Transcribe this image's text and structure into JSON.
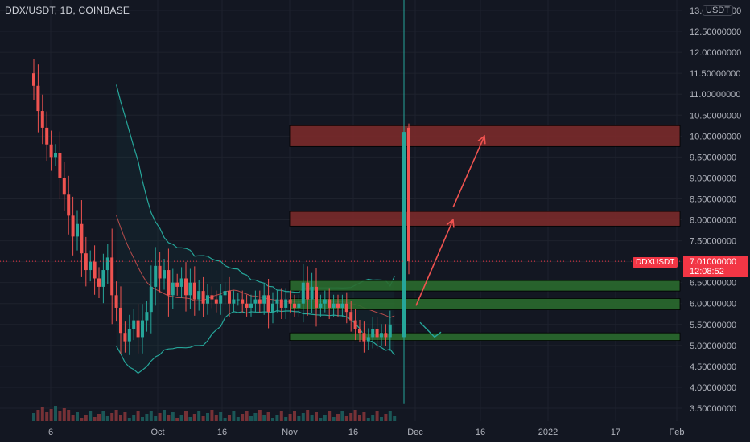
{
  "header": {
    "title": "DDX/USDT, 1D, COINBASE"
  },
  "price_axis": {
    "unit_badge": "USDT",
    "ticks": [
      "13.00000000",
      "12.50000000",
      "12.00000000",
      "11.50000000",
      "11.00000000",
      "10.50000000",
      "10.00000000",
      "9.50000000",
      "9.00000000",
      "8.50000000",
      "8.00000000",
      "7.50000000",
      "7.00000000",
      "6.50000000",
      "6.00000000",
      "5.50000000",
      "5.00000000",
      "4.50000000",
      "4.00000000",
      "3.50000000"
    ],
    "last_price": "7.01000000",
    "countdown": "12:08:52",
    "symbol_label": "DDXUSDT"
  },
  "time_axis": {
    "ticks": [
      "6",
      "Oct",
      "16",
      "Nov",
      "16",
      "Dec",
      "16",
      "2022",
      "17",
      "Feb"
    ]
  },
  "colors": {
    "up": "#26a69a",
    "down": "#ef5350",
    "band": "#26a69a",
    "zone_resist": "#7a2a2a",
    "zone_support": "#2a6a2e",
    "arrow": "#f05350",
    "arrow2": "#26a69a"
  },
  "chart_data": {
    "type": "candlestick",
    "title": "DDX/USDT, 1D, COINBASE",
    "xlabel": "",
    "ylabel": "",
    "ylim": [
      3.3,
      13.0
    ],
    "x_ticks": [
      "6",
      "Oct",
      "16",
      "Nov",
      "16",
      "Dec",
      "16",
      "2022",
      "17",
      "Feb"
    ],
    "close_series": [
      11.2,
      10.6,
      10.2,
      9.8,
      9.5,
      9.6,
      9.0,
      8.6,
      8.1,
      7.6,
      7.9,
      7.2,
      6.8,
      7.0,
      6.6,
      6.4,
      6.8,
      7.1,
      6.2,
      5.9,
      5.3,
      5.1,
      5.4,
      5.6,
      5.2,
      5.6,
      5.8,
      6.4,
      6.9,
      6.6,
      6.8,
      6.2,
      6.5,
      6.4,
      6.6,
      6.2,
      6.5,
      6.1,
      6.3,
      6.0,
      6.2,
      6.1,
      6.0,
      6.2,
      6.3,
      6.0,
      6.1,
      6.1,
      6.0,
      5.9,
      6.0,
      6.1,
      6.0,
      6.2,
      5.8,
      6.0,
      6.1,
      5.9,
      6.1,
      6.0,
      5.9,
      6.0,
      6.5,
      6.1,
      6.4,
      5.9,
      6.0,
      6.1,
      5.9,
      6.0,
      5.9,
      6.0,
      5.8,
      5.6,
      5.4,
      5.3,
      5.1,
      5.2,
      5.4,
      5.2,
      5.3,
      5.2,
      5.5,
      7.01
    ],
    "last_candle": {
      "open": 10.2,
      "high": 10.3,
      "low": 6.7,
      "close": 7.01
    },
    "spike_candle": {
      "open": 5.2,
      "high": 13.3,
      "low": 3.6,
      "close": 10.1
    },
    "zones": [
      {
        "kind": "resistance",
        "from": 9.75,
        "to": 10.25
      },
      {
        "kind": "resistance",
        "from": 7.85,
        "to": 8.2
      },
      {
        "kind": "support",
        "from": 6.3,
        "to": 6.55
      },
      {
        "kind": "support",
        "from": 5.85,
        "to": 6.12
      },
      {
        "kind": "support",
        "from": 5.12,
        "to": 5.3
      }
    ],
    "last_price": 7.01
  }
}
